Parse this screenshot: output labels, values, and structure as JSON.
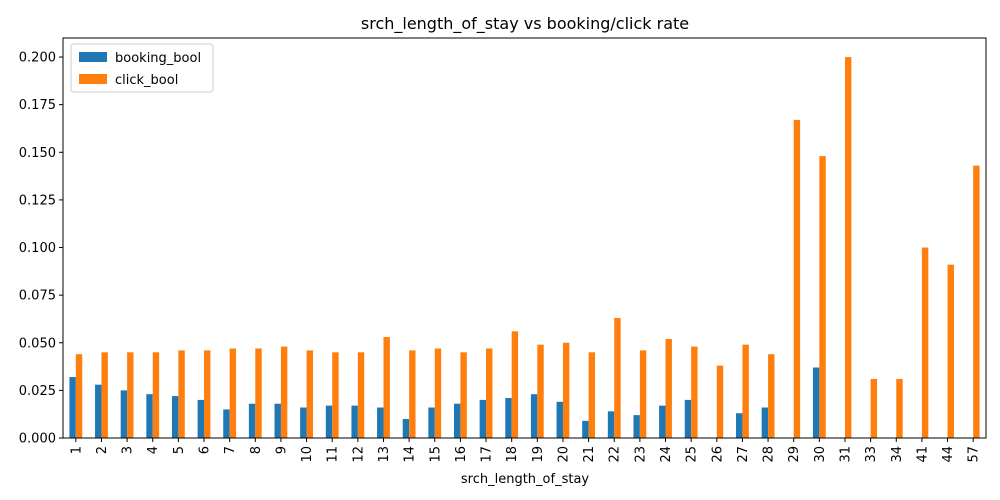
{
  "chart_data": {
    "type": "bar",
    "title": "srch_length_of_stay vs booking/click rate",
    "xlabel": "srch_length_of_stay",
    "ylabel": "",
    "ylim": [
      0,
      0.21
    ],
    "yticks": [
      "0.000",
      "0.025",
      "0.050",
      "0.075",
      "0.100",
      "0.125",
      "0.150",
      "0.175",
      "0.200"
    ],
    "ytick_values": [
      0,
      0.025,
      0.05,
      0.075,
      0.1,
      0.125,
      0.15,
      0.175,
      0.2
    ],
    "categories": [
      "1",
      "2",
      "3",
      "4",
      "5",
      "6",
      "7",
      "8",
      "9",
      "10",
      "11",
      "12",
      "13",
      "14",
      "15",
      "16",
      "17",
      "18",
      "19",
      "20",
      "21",
      "22",
      "23",
      "24",
      "25",
      "26",
      "27",
      "28",
      "29",
      "30",
      "31",
      "33",
      "34",
      "41",
      "44",
      "57"
    ],
    "series": [
      {
        "name": "booking_bool",
        "color": "#1f77b4",
        "values": [
          0.032,
          0.028,
          0.025,
          0.023,
          0.022,
          0.02,
          0.015,
          0.018,
          0.018,
          0.016,
          0.017,
          0.017,
          0.016,
          0.01,
          0.016,
          0.018,
          0.02,
          0.021,
          0.023,
          0.019,
          0.009,
          0.014,
          0.012,
          0.017,
          0.02,
          0.0,
          0.013,
          0.016,
          0.0,
          0.037,
          0.0,
          0.0,
          0.0,
          0.0,
          0.0,
          0.0
        ]
      },
      {
        "name": "click_bool",
        "color": "#ff7f0e",
        "values": [
          0.044,
          0.045,
          0.045,
          0.045,
          0.046,
          0.046,
          0.047,
          0.047,
          0.048,
          0.046,
          0.045,
          0.045,
          0.053,
          0.046,
          0.047,
          0.045,
          0.047,
          0.056,
          0.049,
          0.05,
          0.045,
          0.063,
          0.046,
          0.052,
          0.048,
          0.038,
          0.049,
          0.044,
          0.167,
          0.148,
          0.2,
          0.031,
          0.031,
          0.1,
          0.091,
          0.143
        ]
      }
    ],
    "legend_position": "top-left",
    "grid": false
  }
}
